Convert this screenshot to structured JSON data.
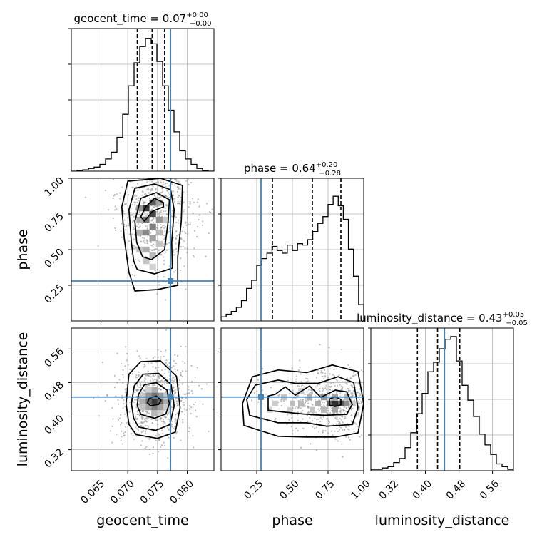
{
  "chart_data": {
    "type": "corner",
    "parameters": [
      "geocent_time",
      "phase",
      "luminosity_distance"
    ],
    "truth_color": "#4682b4",
    "diagonal": [
      {
        "title_main": "geocent_time = 0.07",
        "title_plus": "+0.00",
        "title_minus": "−0.00",
        "range": [
          0.0605,
          0.0845
        ],
        "ticks": [
          0.065,
          0.07,
          0.075,
          0.08
        ],
        "tick_labels": [
          "0.065",
          "0.070",
          "0.075",
          "0.080"
        ],
        "quantiles": [
          0.0716,
          0.0741,
          0.0762
        ],
        "truth": 0.0772,
        "hist": [
          0,
          0.005,
          0.01,
          0.02,
          0.03,
          0.05,
          0.09,
          0.14,
          0.25,
          0.42,
          0.63,
          0.8,
          0.92,
          0.98,
          0.94,
          0.81,
          0.63,
          0.45,
          0.29,
          0.15,
          0.09,
          0.05,
          0.02,
          0.005,
          0
        ]
      },
      {
        "title_main": "phase = 0.64",
        "title_plus": "+0.20",
        "title_minus": "−0.28",
        "range": [
          0.0,
          1.0
        ],
        "ticks": [
          0.25,
          0.5,
          0.75,
          1.0
        ],
        "tick_labels": [
          "0.25",
          "0.50",
          "0.75",
          "1.00"
        ],
        "quantiles": [
          0.36,
          0.64,
          0.84
        ],
        "truth": 0.28,
        "hist": [
          0.03,
          0.05,
          0.07,
          0.1,
          0.15,
          0.24,
          0.3,
          0.41,
          0.46,
          0.5,
          0.55,
          0.52,
          0.5,
          0.56,
          0.52,
          0.57,
          0.56,
          0.6,
          0.66,
          0.72,
          0.77,
          0.86,
          0.92,
          0.85,
          0.75,
          0.53,
          0.33,
          0.12
        ]
      },
      {
        "title_main": "luminosity_distance = 0.43",
        "title_plus": "+0.05",
        "title_minus": "−0.05",
        "range": [
          0.27,
          0.61
        ],
        "ticks": [
          0.32,
          0.4,
          0.48,
          0.56
        ],
        "tick_labels": [
          "0.32",
          "0.40",
          "0.48",
          "0.56"
        ],
        "quantiles": [
          0.381,
          0.429,
          0.482
        ],
        "truth": 0.4455,
        "hist": [
          0.01,
          0.01,
          0.02,
          0.03,
          0.06,
          0.09,
          0.17,
          0.28,
          0.42,
          0.57,
          0.73,
          0.8,
          0.9,
          0.97,
          0.99,
          0.81,
          0.63,
          0.52,
          0.4,
          0.27,
          0.19,
          0.12,
          0.05,
          0.03,
          0.01
        ]
      }
    ],
    "ylabels": [
      "phase",
      "luminosity_distance"
    ],
    "xlabels": [
      "geocent_time",
      "phase",
      "luminosity_distance"
    ],
    "pairs": [
      {
        "x": 0,
        "y": 1,
        "mode": [
          0.0748,
          0.79
        ],
        "sd": [
          0.0034,
          0.21
        ],
        "truth": [
          0.0772,
          0.28
        ],
        "contours": [
          [
            [
              0.0728,
              0.7
            ],
            [
              0.0742,
              0.77
            ],
            [
              0.076,
              0.8
            ],
            [
              0.076,
              0.83
            ],
            [
              0.0745,
              0.86
            ],
            [
              0.073,
              0.8
            ],
            [
              0.0722,
              0.73
            ]
          ],
          [
            [
              0.0725,
              0.45
            ],
            [
              0.074,
              0.43
            ],
            [
              0.0762,
              0.5
            ],
            [
              0.0768,
              0.7
            ],
            [
              0.077,
              0.85
            ],
            [
              0.0748,
              0.9
            ],
            [
              0.0722,
              0.86
            ],
            [
              0.0712,
              0.7
            ],
            [
              0.0715,
              0.55
            ]
          ],
          [
            [
              0.0716,
              0.36
            ],
            [
              0.0745,
              0.33
            ],
            [
              0.0775,
              0.37
            ],
            [
              0.0774,
              0.55
            ],
            [
              0.0778,
              0.78
            ],
            [
              0.0772,
              0.92
            ],
            [
              0.0745,
              0.96
            ],
            [
              0.0712,
              0.93
            ],
            [
              0.0702,
              0.78
            ],
            [
              0.0706,
              0.55
            ],
            [
              0.071,
              0.42
            ]
          ],
          [
            [
              0.0712,
              0.21
            ],
            [
              0.075,
              0.22
            ],
            [
              0.0784,
              0.25
            ],
            [
              0.0784,
              0.45
            ],
            [
              0.079,
              0.7
            ],
            [
              0.0792,
              0.95
            ],
            [
              0.0755,
              1.0
            ],
            [
              0.07,
              0.98
            ],
            [
              0.069,
              0.8
            ],
            [
              0.0694,
              0.58
            ],
            [
              0.0702,
              0.34
            ]
          ]
        ],
        "cells": [
          [
            0.0731,
            0.79,
            0.85
          ],
          [
            0.0742,
            0.75,
            0.8
          ],
          [
            0.0742,
            0.83,
            0.72
          ],
          [
            0.0731,
            0.71,
            0.6
          ],
          [
            0.0753,
            0.71,
            0.45
          ],
          [
            0.0731,
            0.62,
            0.5
          ],
          [
            0.0742,
            0.58,
            0.4
          ],
          [
            0.0731,
            0.5,
            0.35
          ],
          [
            0.0742,
            0.46,
            0.3
          ],
          [
            0.0753,
            0.62,
            0.3
          ],
          [
            0.072,
            0.62,
            0.35
          ],
          [
            0.072,
            0.79,
            0.45
          ],
          [
            0.0753,
            0.83,
            0.4
          ],
          [
            0.0753,
            0.54,
            0.25
          ],
          [
            0.0731,
            0.42,
            0.25
          ],
          [
            0.072,
            0.5,
            0.25
          ],
          [
            0.0764,
            0.71,
            0.22
          ],
          [
            0.0742,
            0.38,
            0.2
          ],
          [
            0.072,
            0.71,
            0.35
          ],
          [
            0.0742,
            0.66,
            0.55
          ]
        ]
      },
      {
        "x": 0,
        "y": 2,
        "mode": [
          0.0745,
          0.435
        ],
        "sd": [
          0.0033,
          0.052
        ],
        "truth": [
          0.0772,
          0.4455
        ],
        "contours": [
          [
            [
              0.0738,
              0.425
            ],
            [
              0.0752,
              0.428
            ],
            [
              0.0756,
              0.438
            ],
            [
              0.0748,
              0.448
            ],
            [
              0.0736,
              0.442
            ],
            [
              0.0733,
              0.432
            ]
          ],
          [
            [
              0.0722,
              0.404
            ],
            [
              0.0745,
              0.395
            ],
            [
              0.0764,
              0.405
            ],
            [
              0.077,
              0.43
            ],
            [
              0.0766,
              0.462
            ],
            [
              0.0748,
              0.48
            ],
            [
              0.0728,
              0.475
            ],
            [
              0.0718,
              0.452
            ],
            [
              0.0716,
              0.425
            ]
          ],
          [
            [
              0.0718,
              0.374
            ],
            [
              0.0747,
              0.366
            ],
            [
              0.0771,
              0.38
            ],
            [
              0.0778,
              0.424
            ],
            [
              0.0773,
              0.475
            ],
            [
              0.0752,
              0.502
            ],
            [
              0.0726,
              0.5
            ],
            [
              0.0711,
              0.472
            ],
            [
              0.0706,
              0.43
            ],
            [
              0.071,
              0.395
            ]
          ],
          [
            [
              0.0714,
              0.356
            ],
            [
              0.075,
              0.347
            ],
            [
              0.078,
              0.362
            ],
            [
              0.0788,
              0.42
            ],
            [
              0.0782,
              0.495
            ],
            [
              0.0755,
              0.532
            ],
            [
              0.0722,
              0.53
            ],
            [
              0.0702,
              0.5
            ],
            [
              0.0697,
              0.43
            ],
            [
              0.0702,
              0.38
            ]
          ]
        ],
        "cells": [
          [
            0.0745,
            0.435,
            0.85
          ],
          [
            0.0735,
            0.435,
            0.65
          ],
          [
            0.0755,
            0.435,
            0.65
          ],
          [
            0.0745,
            0.449,
            0.6
          ],
          [
            0.0745,
            0.421,
            0.55
          ],
          [
            0.0735,
            0.449,
            0.45
          ],
          [
            0.0755,
            0.449,
            0.45
          ],
          [
            0.0735,
            0.421,
            0.4
          ],
          [
            0.0755,
            0.421,
            0.4
          ],
          [
            0.0765,
            0.435,
            0.35
          ],
          [
            0.0725,
            0.435,
            0.35
          ],
          [
            0.0745,
            0.463,
            0.35
          ],
          [
            0.0745,
            0.407,
            0.3
          ],
          [
            0.0765,
            0.449,
            0.25
          ],
          [
            0.0725,
            0.421,
            0.25
          ],
          [
            0.0725,
            0.449,
            0.22
          ],
          [
            0.0765,
            0.421,
            0.22
          ],
          [
            0.0735,
            0.463,
            0.2
          ],
          [
            0.0755,
            0.407,
            0.2
          ]
        ]
      },
      {
        "x": 1,
        "y": 2,
        "mode": [
          0.8,
          0.432
        ],
        "sd": [
          0.2,
          0.04
        ],
        "truth": [
          0.28,
          0.4455
        ],
        "contours": [
          [
            [
              0.76,
              0.426
            ],
            [
              0.8,
              0.423
            ],
            [
              0.84,
              0.427
            ],
            [
              0.84,
              0.44
            ],
            [
              0.8,
              0.446
            ],
            [
              0.76,
              0.441
            ]
          ],
          [
            [
              0.33,
              0.414
            ],
            [
              0.43,
              0.41
            ],
            [
              0.58,
              0.405
            ],
            [
              0.72,
              0.402
            ],
            [
              0.88,
              0.404
            ],
            [
              0.92,
              0.428
            ],
            [
              0.88,
              0.458
            ],
            [
              0.8,
              0.462
            ],
            [
              0.7,
              0.445
            ],
            [
              0.62,
              0.472
            ],
            [
              0.52,
              0.45
            ],
            [
              0.45,
              0.47
            ],
            [
              0.38,
              0.452
            ],
            [
              0.33,
              0.448
            ]
          ],
          [
            [
              0.2,
              0.402
            ],
            [
              0.4,
              0.384
            ],
            [
              0.6,
              0.384
            ],
            [
              0.74,
              0.376
            ],
            [
              0.92,
              0.38
            ],
            [
              0.96,
              0.42
            ],
            [
              0.93,
              0.48
            ],
            [
              0.82,
              0.494
            ],
            [
              0.68,
              0.478
            ],
            [
              0.52,
              0.478
            ],
            [
              0.4,
              0.486
            ],
            [
              0.24,
              0.474
            ],
            [
              0.18,
              0.44
            ]
          ],
          [
            [
              0.16,
              0.378
            ],
            [
              0.4,
              0.352
            ],
            [
              0.6,
              0.35
            ],
            [
              0.8,
              0.35
            ],
            [
              0.96,
              0.36
            ],
            [
              1.0,
              0.43
            ],
            [
              0.96,
              0.506
            ],
            [
              0.78,
              0.522
            ],
            [
              0.6,
              0.504
            ],
            [
              0.4,
              0.51
            ],
            [
              0.22,
              0.494
            ],
            [
              0.15,
              0.43
            ]
          ]
        ],
        "cells": [
          [
            0.8,
            0.43,
            0.9
          ],
          [
            0.76,
            0.43,
            0.65
          ],
          [
            0.84,
            0.43,
            0.7
          ],
          [
            0.72,
            0.445,
            0.45
          ],
          [
            0.88,
            0.43,
            0.5
          ],
          [
            0.68,
            0.43,
            0.35
          ],
          [
            0.62,
            0.445,
            0.35
          ],
          [
            0.56,
            0.43,
            0.3
          ],
          [
            0.5,
            0.43,
            0.28
          ],
          [
            0.44,
            0.445,
            0.25
          ],
          [
            0.38,
            0.43,
            0.22
          ],
          [
            0.8,
            0.415,
            0.4
          ],
          [
            0.8,
            0.445,
            0.4
          ],
          [
            0.64,
            0.415,
            0.25
          ],
          [
            0.48,
            0.415,
            0.2
          ],
          [
            0.34,
            0.415,
            0.18
          ],
          [
            0.88,
            0.445,
            0.3
          ],
          [
            0.56,
            0.46,
            0.2
          ],
          [
            0.72,
            0.415,
            0.3
          ],
          [
            0.92,
            0.43,
            0.22
          ]
        ]
      }
    ]
  }
}
